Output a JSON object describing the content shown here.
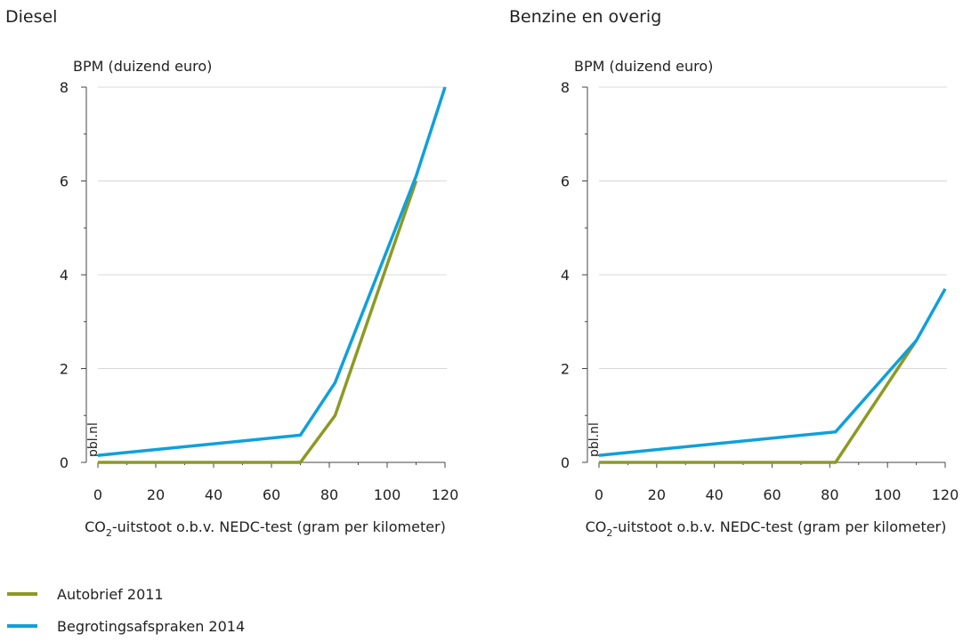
{
  "colors": {
    "autobrief": "#8c9a23",
    "begroting": "#0fa0dc",
    "grid": "#d9d9d9",
    "axis": "#444444",
    "watermark": "#9a9a9a"
  },
  "legend": [
    {
      "label": "Autobrief 2011",
      "color": "#8c9a23"
    },
    {
      "label": "Begrotingsafspraken 2014",
      "color": "#0fa0dc"
    }
  ],
  "chart_data": [
    {
      "type": "line",
      "title": "Diesel",
      "ylabel": "BPM (duizend euro)",
      "xlabel": "CO2-uitstoot o.b.v. NEDC-test (gram per kilometer)",
      "xlabel_main": "CO",
      "xlabel_sub": "2",
      "xlabel_rest": "-uitstoot o.b.v. NEDC-test (gram per kilometer)",
      "xlim": [
        0,
        120
      ],
      "ylim": [
        0,
        8
      ],
      "xticks": [
        "0",
        "20",
        "40",
        "60",
        "80",
        "100",
        "120"
      ],
      "yticks": [
        "0",
        "2",
        "4",
        "6",
        "8"
      ],
      "watermark": "pbl.nl",
      "grid": true,
      "series": [
        {
          "name": "Autobrief 2011",
          "points": [
            [
              0,
              0
            ],
            [
              70,
              0
            ],
            [
              82,
              1.0
            ],
            [
              110,
              6.0
            ]
          ]
        },
        {
          "name": "Begrotingsafspraken 2014",
          "points": [
            [
              0,
              0.15
            ],
            [
              70,
              0.58
            ],
            [
              82,
              1.7
            ],
            [
              110,
              6.1
            ],
            [
              120,
              8.0
            ]
          ]
        }
      ]
    },
    {
      "type": "line",
      "title": "Benzine en overig",
      "ylabel": "BPM (duizend euro)",
      "xlabel": "CO2-uitstoot o.b.v. NEDC-test (gram per kilometer)",
      "xlabel_main": "CO",
      "xlabel_sub": "2",
      "xlabel_rest": "-uitstoot o.b.v. NEDC-test (gram per kilometer)",
      "xlim": [
        0,
        120
      ],
      "ylim": [
        0,
        8
      ],
      "xticks": [
        "0",
        "20",
        "40",
        "60",
        "80",
        "100",
        "120"
      ],
      "yticks": [
        "0",
        "2",
        "4",
        "6",
        "8"
      ],
      "watermark": "pbl.nl",
      "grid": true,
      "series": [
        {
          "name": "Autobrief 2011",
          "points": [
            [
              0,
              0
            ],
            [
              82,
              0
            ],
            [
              110,
              2.6
            ]
          ]
        },
        {
          "name": "Begrotingsafspraken 2014",
          "points": [
            [
              0,
              0.15
            ],
            [
              82,
              0.65
            ],
            [
              110,
              2.6
            ],
            [
              120,
              3.7
            ]
          ]
        }
      ]
    }
  ]
}
